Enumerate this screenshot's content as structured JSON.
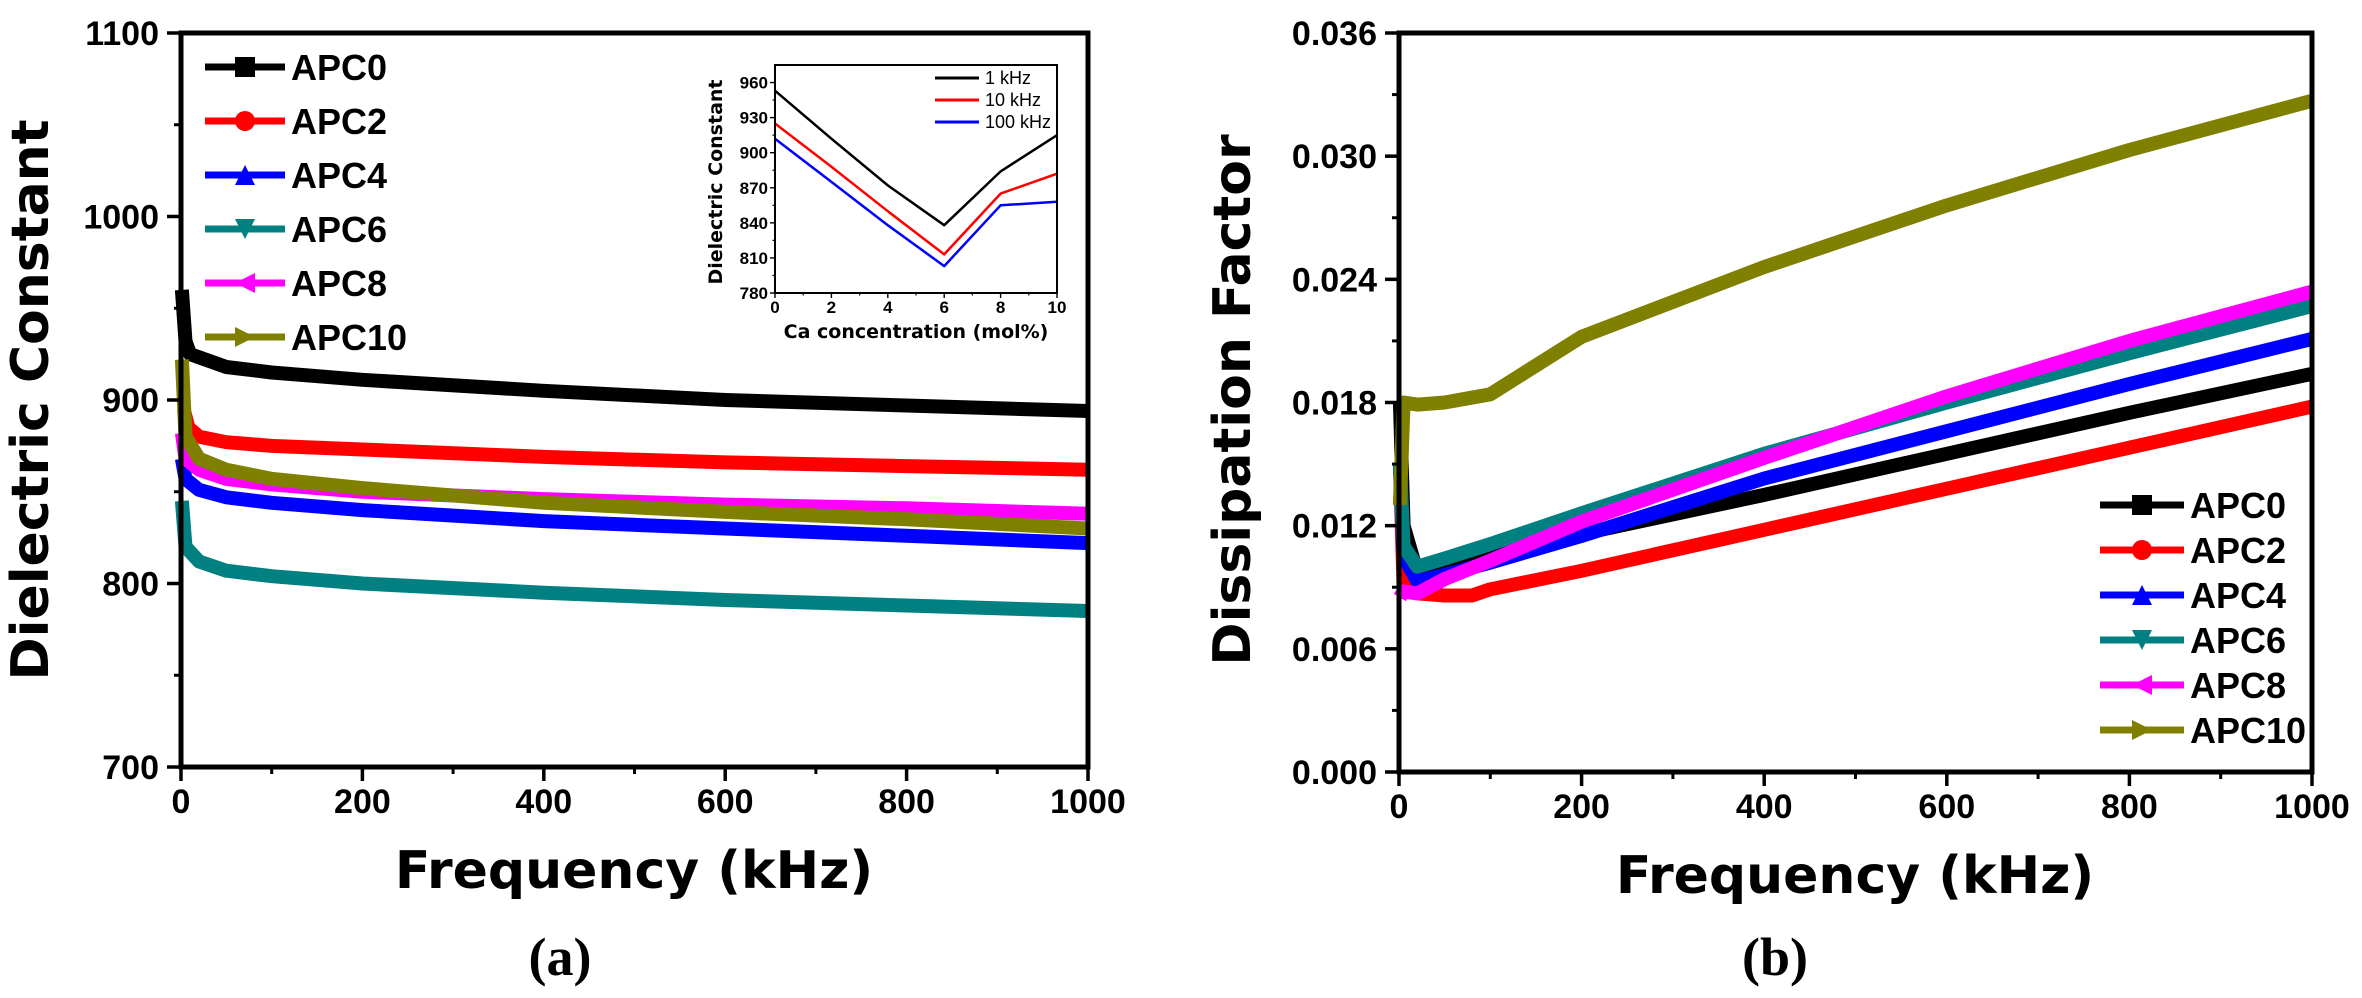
{
  "chart_data": [
    {
      "type": "line",
      "panel_label": "(a)",
      "xlabel": "Frequency (kHz)",
      "ylabel": "Dielectric Constant",
      "xlim": [
        0,
        1000
      ],
      "ylim": [
        700,
        1100
      ],
      "xticks": [
        0,
        200,
        400,
        600,
        800,
        1000
      ],
      "yticks": [
        700,
        800,
        900,
        1000,
        1100
      ],
      "grid": false,
      "legend_position": "top-left",
      "series": [
        {
          "name": "APC0",
          "color": "#000000",
          "marker": "square",
          "x": [
            1,
            5,
            10,
            50,
            100,
            200,
            400,
            600,
            800,
            1000
          ],
          "y": [
            960,
            932,
            925,
            918,
            915,
            911,
            905,
            900,
            897,
            894
          ]
        },
        {
          "name": "APC2",
          "color": "#ff0000",
          "marker": "circle",
          "x": [
            3,
            8,
            20,
            50,
            100,
            200,
            400,
            600,
            800,
            1000
          ],
          "y": [
            895,
            885,
            880,
            877,
            875,
            873,
            869,
            866,
            864,
            862
          ]
        },
        {
          "name": "APC4",
          "color": "#0000ff",
          "marker": "triangle-up",
          "x": [
            1,
            5,
            20,
            50,
            100,
            200,
            400,
            600,
            800,
            1000
          ],
          "y": [
            868,
            857,
            851,
            847,
            844,
            840,
            834,
            830,
            826,
            822
          ]
        },
        {
          "name": "APC6",
          "color": "#008080",
          "marker": "triangle-down",
          "x": [
            1,
            5,
            20,
            50,
            100,
            200,
            400,
            600,
            800,
            1000
          ],
          "y": [
            845,
            820,
            812,
            807,
            804,
            800,
            795,
            791,
            788,
            785
          ]
        },
        {
          "name": "APC8",
          "color": "#ff00ff",
          "marker": "triangle-left",
          "x": [
            1,
            5,
            20,
            50,
            100,
            200,
            400,
            600,
            800,
            1000
          ],
          "y": [
            882,
            868,
            862,
            857,
            854,
            850,
            846,
            843,
            841,
            838
          ]
        },
        {
          "name": "APC10",
          "color": "#808000",
          "marker": "triangle-right",
          "x": [
            1,
            5,
            20,
            50,
            100,
            200,
            400,
            600,
            800,
            1000
          ],
          "y": [
            922,
            880,
            868,
            862,
            857,
            852,
            844,
            839,
            835,
            830
          ]
        }
      ],
      "inset": {
        "type": "line",
        "xlabel": "Ca concentration (mol%)",
        "ylabel": "Dielectric Constant",
        "xlim": [
          0,
          10
        ],
        "ylim": [
          780,
          975
        ],
        "xticks": [
          0,
          2,
          4,
          6,
          8,
          10
        ],
        "yticks": [
          780,
          810,
          840,
          870,
          900,
          930,
          960
        ],
        "legend_position": "top-right",
        "series": [
          {
            "name": "1 kHz",
            "color": "#000000",
            "x": [
              0,
              2,
              4,
              6,
              8,
              10
            ],
            "y": [
              953,
              912,
              872,
              838,
              884,
              915
            ]
          },
          {
            "name": "10 kHz",
            "color": "#ff0000",
            "x": [
              0,
              2,
              4,
              6,
              8,
              10
            ],
            "y": [
              925,
              888,
              850,
              813,
              865,
              882
            ]
          },
          {
            "name": "100 kHz",
            "color": "#0000ff",
            "x": [
              0,
              2,
              4,
              6,
              8,
              10
            ],
            "y": [
              912,
              875,
              838,
              803,
              855,
              858
            ]
          }
        ]
      }
    },
    {
      "type": "line",
      "panel_label": "(b)",
      "xlabel": "Frequency (kHz)",
      "ylabel": "Dissipation Factor",
      "xlim": [
        0,
        1000
      ],
      "ylim": [
        0,
        0.036
      ],
      "xticks": [
        0,
        200,
        400,
        600,
        800,
        1000
      ],
      "yticks": [
        "0.000",
        "0.006",
        "0.012",
        "0.018",
        "0.024",
        "0.030",
        "0.036"
      ],
      "grid": false,
      "legend_position": "bottom-right",
      "series": [
        {
          "name": "APC0",
          "color": "#000000",
          "marker": "square",
          "x": [
            1,
            5,
            20,
            50,
            100,
            200,
            400,
            600,
            800,
            1000
          ],
          "y": [
            0.018,
            0.012,
            0.0097,
            0.01,
            0.0106,
            0.0116,
            0.0135,
            0.0155,
            0.0175,
            0.0194
          ]
        },
        {
          "name": "APC2",
          "color": "#ff0000",
          "marker": "circle",
          "x": [
            1,
            5,
            20,
            50,
            80,
            100,
            200,
            400,
            600,
            800,
            1000
          ],
          "y": [
            0.015,
            0.009,
            0.0087,
            0.0086,
            0.0086,
            0.0089,
            0.0098,
            0.0118,
            0.0138,
            0.0158,
            0.0178
          ]
        },
        {
          "name": "APC4",
          "color": "#0000ff",
          "marker": "triangle-up",
          "x": [
            1,
            5,
            20,
            50,
            100,
            200,
            400,
            600,
            800,
            1000
          ],
          "y": [
            0.015,
            0.0105,
            0.0093,
            0.0096,
            0.0102,
            0.0115,
            0.0143,
            0.0166,
            0.0189,
            0.0211
          ]
        },
        {
          "name": "APC6",
          "color": "#008080",
          "marker": "triangle-down",
          "x": [
            1,
            5,
            20,
            50,
            100,
            200,
            400,
            600,
            800,
            1000
          ],
          "y": [
            0.015,
            0.011,
            0.01,
            0.0104,
            0.0111,
            0.0126,
            0.0155,
            0.018,
            0.0204,
            0.0227
          ]
        },
        {
          "name": "APC8",
          "color": "#ff00ff",
          "marker": "triangle-left",
          "x": [
            1,
            5,
            20,
            50,
            100,
            200,
            400,
            600,
            800,
            1000
          ],
          "y": [
            0.0085,
            0.0088,
            0.0087,
            0.0094,
            0.0103,
            0.0122,
            0.0153,
            0.0183,
            0.021,
            0.0234
          ]
        },
        {
          "name": "APC10",
          "color": "#808000",
          "marker": "triangle-right",
          "x": [
            1,
            5,
            20,
            50,
            100,
            200,
            400,
            600,
            800,
            1000
          ],
          "y": [
            0.013,
            0.018,
            0.0179,
            0.018,
            0.0184,
            0.0212,
            0.0246,
            0.0276,
            0.0303,
            0.0327
          ]
        }
      ]
    }
  ]
}
